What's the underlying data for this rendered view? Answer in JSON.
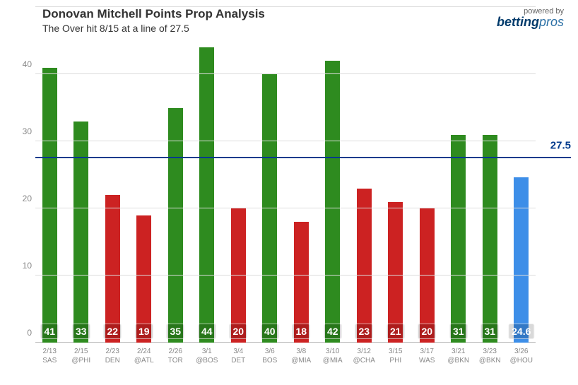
{
  "title": "Donovan Mitchell Points Prop Analysis",
  "subtitle": "The Over hit 8/15 at a line of 27.5",
  "brand_prefix": "powered by",
  "brand_name_a": "betting",
  "brand_name_b": "pros",
  "chart": {
    "type": "bar",
    "ylim": [
      0,
      50
    ],
    "ytick_step": 10,
    "yticks": [
      0,
      10,
      20,
      30,
      40,
      50
    ],
    "prop_line_value": 27.5,
    "prop_line_label": "27.5",
    "prop_line_color": "#003a8c",
    "grid_color": "#dcdcdc",
    "background_color": "#ffffff",
    "ylabel_color": "#888888",
    "title_fontsize": 17,
    "label_fontsize": 12,
    "bar_width": 0.7,
    "colors": {
      "over": "#2e8b1f",
      "under": "#cc2222",
      "upcoming": "#3d8ee8"
    },
    "games": [
      {
        "date": "2/13",
        "opp": "SAS",
        "value": 41,
        "label": "41",
        "result": "over"
      },
      {
        "date": "2/15",
        "opp": "@PHI",
        "value": 33,
        "label": "33",
        "result": "over"
      },
      {
        "date": "2/23",
        "opp": "DEN",
        "value": 22,
        "label": "22",
        "result": "under"
      },
      {
        "date": "2/24",
        "opp": "@ATL",
        "value": 19,
        "label": "19",
        "result": "under"
      },
      {
        "date": "2/26",
        "opp": "TOR",
        "value": 35,
        "label": "35",
        "result": "over"
      },
      {
        "date": "3/1",
        "opp": "@BOS",
        "value": 44,
        "label": "44",
        "result": "over"
      },
      {
        "date": "3/4",
        "opp": "DET",
        "value": 20,
        "label": "20",
        "result": "under"
      },
      {
        "date": "3/6",
        "opp": "BOS",
        "value": 40,
        "label": "40",
        "result": "over"
      },
      {
        "date": "3/8",
        "opp": "@MIA",
        "value": 18,
        "label": "18",
        "result": "under"
      },
      {
        "date": "3/10",
        "opp": "@MIA",
        "value": 42,
        "label": "42",
        "result": "over"
      },
      {
        "date": "3/12",
        "opp": "@CHA",
        "value": 23,
        "label": "23",
        "result": "under"
      },
      {
        "date": "3/15",
        "opp": "PHI",
        "value": 21,
        "label": "21",
        "result": "under"
      },
      {
        "date": "3/17",
        "opp": "WAS",
        "value": 20,
        "label": "20",
        "result": "under"
      },
      {
        "date": "3/21",
        "opp": "@BKN",
        "value": 31,
        "label": "31",
        "result": "over"
      },
      {
        "date": "3/23",
        "opp": "@BKN",
        "value": 31,
        "label": "31",
        "result": "over"
      },
      {
        "date": "3/26",
        "opp": "@HOU",
        "value": 24.6,
        "label": "24.6",
        "result": "upcoming"
      }
    ]
  }
}
